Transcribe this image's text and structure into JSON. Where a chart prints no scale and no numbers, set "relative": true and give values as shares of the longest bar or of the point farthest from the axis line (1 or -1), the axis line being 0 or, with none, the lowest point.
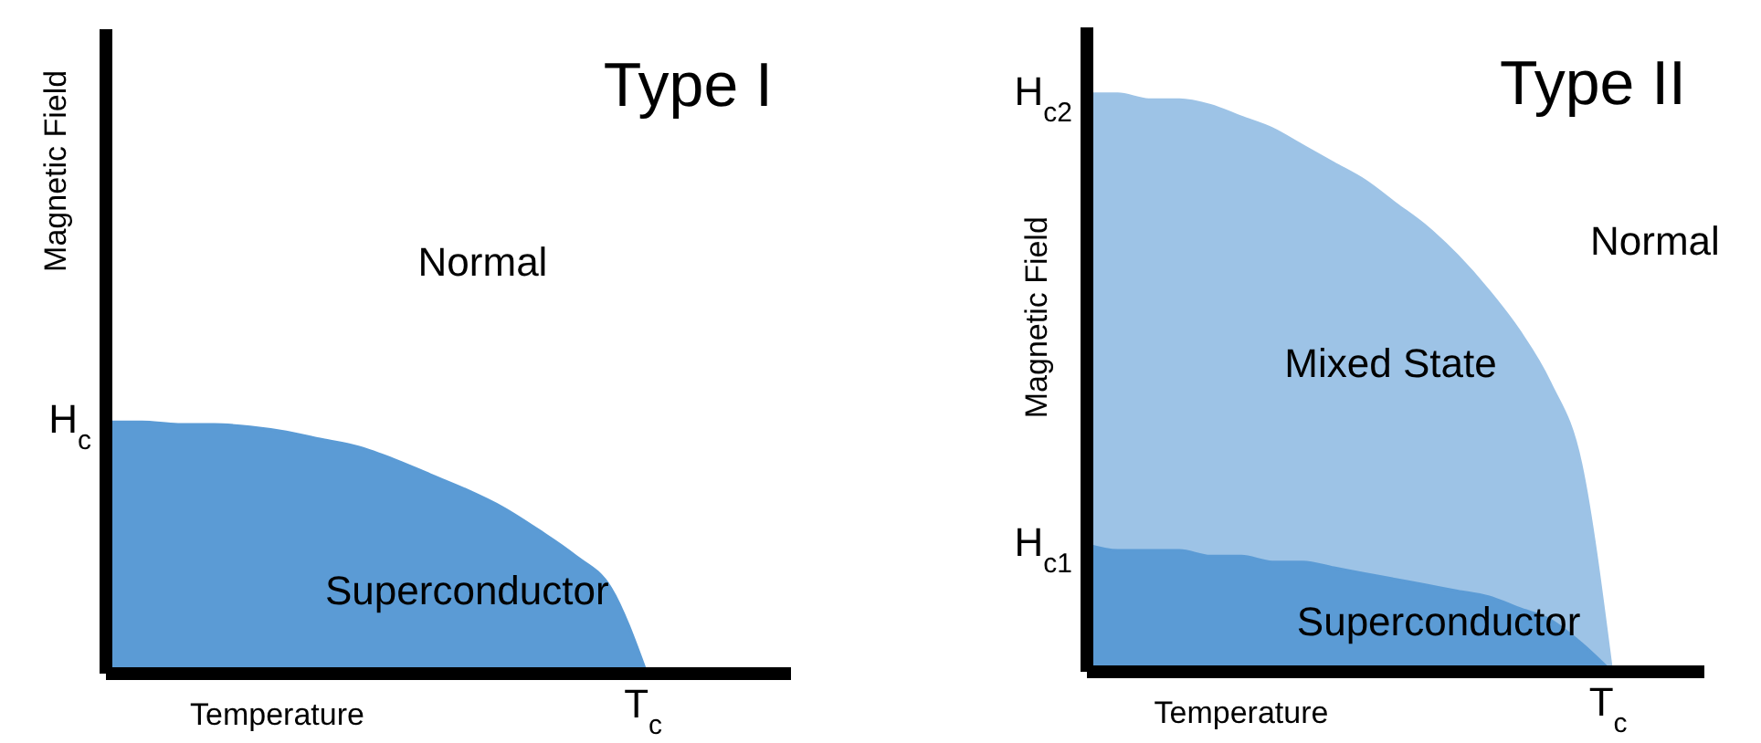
{
  "chart_data": [
    {
      "type": "area",
      "relative": true,
      "title": "Type I",
      "xlabel": "Temperature",
      "ylabel": "Magnetic Field",
      "categories": [
        null,
        null,
        null,
        null,
        null,
        null,
        null,
        null,
        null,
        null,
        null,
        null,
        null,
        null,
        null,
        null,
        null,
        null,
        null,
        null
      ],
      "annotations": [
        "Normal",
        "H$_{c}$",
        "T$_{c}$"
      ],
      "series": [
        {
          "name": "Superconductor",
          "color": "#5b9bd5",
          "values": [
            1.0,
            1.0,
            0.99,
            0.99,
            0.98,
            0.96,
            0.93,
            0.9,
            0.85,
            0.79,
            0.73,
            0.66,
            0.57,
            0.47,
            0.34,
            0,
            null,
            null,
            null,
            null
          ]
        }
      ]
    },
    {
      "type": "area",
      "relative": true,
      "title": "Type II",
      "xlabel": "Temperature",
      "ylabel": "Magnetic Field",
      "categories": [
        null,
        null,
        null,
        null,
        null,
        null,
        null,
        null,
        null,
        null,
        null,
        null,
        null,
        null,
        null,
        null,
        null,
        null,
        null,
        null,
        null
      ],
      "annotations": [
        "Normal",
        "H$_{c2}$",
        "H$_{c1}$",
        "T$_{c}$"
      ],
      "series": [
        {
          "name": "Mixed State",
          "color": "#9dc3e6",
          "values": [
            1.0,
            1.0,
            0.99,
            0.99,
            0.98,
            0.96,
            0.94,
            0.91,
            0.88,
            0.85,
            0.81,
            0.77,
            0.72,
            0.66,
            0.59,
            0.5,
            0.36,
            0,
            null,
            null,
            null
          ]
        },
        {
          "name": "Superconductor",
          "color": "#5b9bd5",
          "values": [
            0.22,
            0.21,
            0.21,
            0.21,
            0.2,
            0.2,
            0.19,
            0.19,
            0.18,
            0.17,
            0.16,
            0.15,
            0.14,
            0.13,
            0.11,
            0.09,
            0.05,
            0,
            null,
            null,
            null
          ]
        }
      ]
    }
  ]
}
